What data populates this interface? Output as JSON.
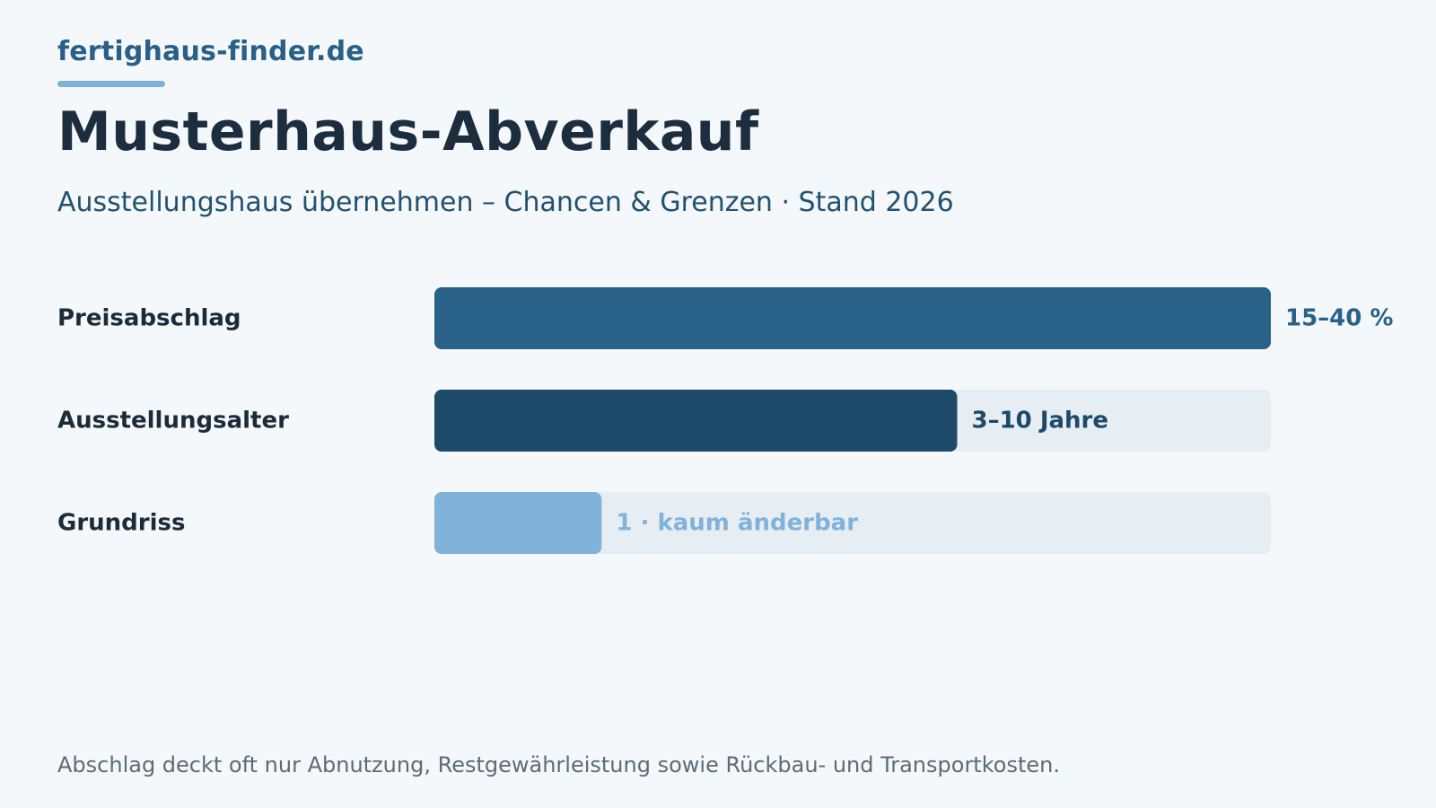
{
  "header": {
    "brand": "fertighaus-finder.de",
    "title": "Musterhaus-Abverkauf",
    "subtitle": "Ausstellungshaus übernehmen – Chancen & Grenzen · Stand 2026"
  },
  "chart_data": {
    "type": "bar",
    "orientation": "horizontal",
    "categories": [
      "Preisabschlag",
      "Ausstellungsalter",
      "Grundriss"
    ],
    "values": [
      1.0,
      0.625,
      0.2
    ],
    "value_labels": [
      "15–40 %",
      "3–10 Jahre",
      "1 · kaum änderbar"
    ],
    "bar_colors": [
      "#2a6189",
      "#1e4a6a",
      "#80b2da"
    ],
    "label_colors": [
      "#2a6189",
      "#1e4a6a",
      "#80b2da"
    ],
    "track_color": "#e6edf3",
    "xlim": [
      0,
      1
    ],
    "grid": false,
    "legend": false
  },
  "footer": {
    "note": "Abschlag deckt oft nur Abnutzung, Restgewährleistung sowie Rückbau- und Transportkosten."
  }
}
